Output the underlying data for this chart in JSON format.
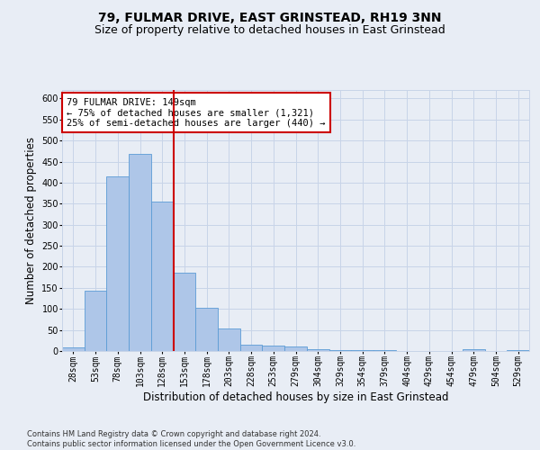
{
  "title": "79, FULMAR DRIVE, EAST GRINSTEAD, RH19 3NN",
  "subtitle": "Size of property relative to detached houses in East Grinstead",
  "xlabel": "Distribution of detached houses by size in East Grinstead",
  "ylabel": "Number of detached properties",
  "footnote": "Contains HM Land Registry data © Crown copyright and database right 2024.\nContains public sector information licensed under the Open Government Licence v3.0.",
  "bin_labels": [
    "28sqm",
    "53sqm",
    "78sqm",
    "103sqm",
    "128sqm",
    "153sqm",
    "178sqm",
    "203sqm",
    "228sqm",
    "253sqm",
    "279sqm",
    "304sqm",
    "329sqm",
    "354sqm",
    "379sqm",
    "404sqm",
    "429sqm",
    "454sqm",
    "479sqm",
    "504sqm",
    "529sqm"
  ],
  "bar_values": [
    8,
    143,
    415,
    468,
    355,
    185,
    102,
    53,
    15,
    12,
    10,
    5,
    3,
    2,
    3,
    0,
    0,
    0,
    4,
    0,
    3
  ],
  "bar_color": "#aec6e8",
  "bar_edge_color": "#5b9bd5",
  "vline_x_index": 4,
  "vline_color": "#cc0000",
  "annotation_text": "79 FULMAR DRIVE: 149sqm\n← 75% of detached houses are smaller (1,321)\n25% of semi-detached houses are larger (440) →",
  "annotation_box_color": "#ffffff",
  "annotation_box_edge": "#cc0000",
  "ylim": [
    0,
    620
  ],
  "yticks": [
    0,
    50,
    100,
    150,
    200,
    250,
    300,
    350,
    400,
    450,
    500,
    550,
    600
  ],
  "grid_color": "#c8d4e8",
  "bg_color": "#e8edf5",
  "title_fontsize": 10,
  "subtitle_fontsize": 9,
  "axis_label_fontsize": 8.5,
  "tick_fontsize": 7,
  "annot_fontsize": 7.5
}
